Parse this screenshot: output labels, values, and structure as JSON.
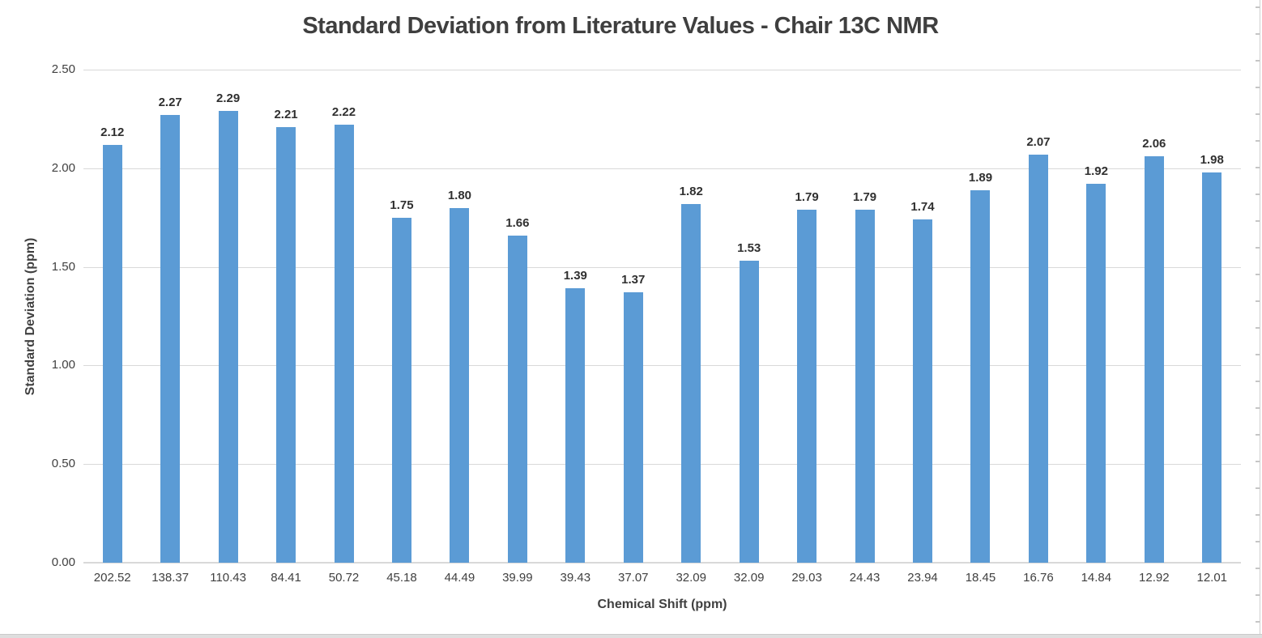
{
  "chart_data": {
    "type": "bar",
    "title": "Standard Deviation from Literature Values - Chair 13C NMR",
    "xlabel": "Chemical Shift (ppm)",
    "ylabel": "Standard Deviation (ppm)",
    "categories": [
      "202.52",
      "138.37",
      "110.43",
      "84.41",
      "50.72",
      "45.18",
      "44.49",
      "39.99",
      "39.43",
      "37.07",
      "32.09",
      "32.09",
      "29.03",
      "24.43",
      "23.94",
      "18.45",
      "16.76",
      "14.84",
      "12.92",
      "12.01"
    ],
    "values": [
      2.12,
      2.27,
      2.29,
      2.21,
      2.22,
      1.75,
      1.8,
      1.66,
      1.39,
      1.37,
      1.82,
      1.53,
      1.79,
      1.79,
      1.74,
      1.89,
      2.07,
      1.92,
      2.06,
      1.98
    ],
    "data_labels": [
      "2.12",
      "2.27",
      "2.29",
      "2.21",
      "2.22",
      "1.75",
      "1.80",
      "1.66",
      "1.39",
      "1.37",
      "1.82",
      "1.53",
      "1.79",
      "1.79",
      "1.74",
      "1.89",
      "2.07",
      "1.92",
      "2.06",
      "1.98"
    ],
    "y_ticks": [
      "0.00",
      "0.50",
      "1.00",
      "1.50",
      "2.00",
      "2.50"
    ],
    "ylim": [
      0,
      2.5
    ],
    "grid": true,
    "legend": "none",
    "colors": {
      "bar": "#5B9BD5",
      "gridline": "#D9D9D9",
      "axis_line": "#D9D9D9",
      "text": "#404040",
      "data_label": "#303030",
      "title": "#3F3F3F",
      "edge": "#CFCFCF"
    }
  }
}
